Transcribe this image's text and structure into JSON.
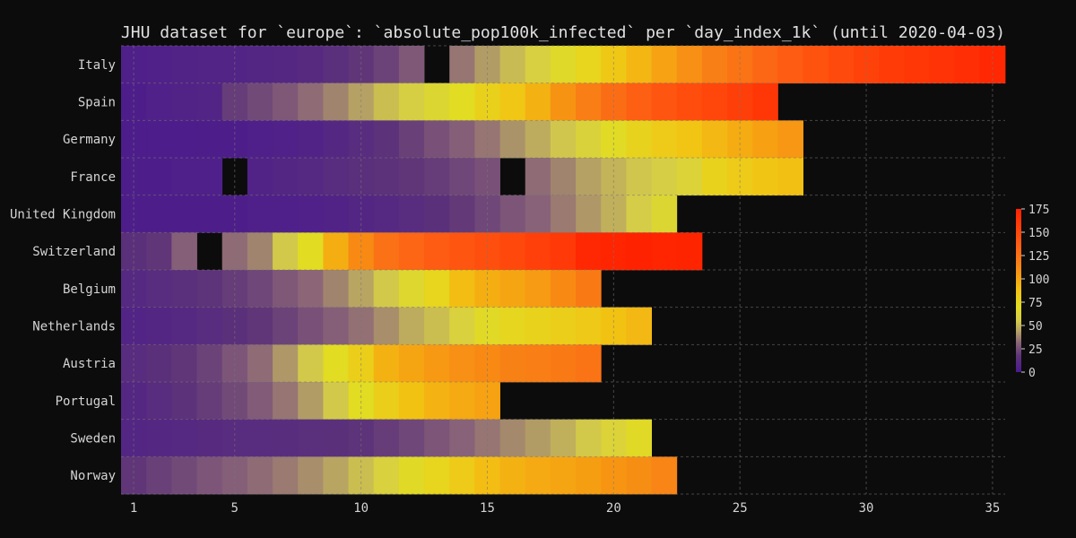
{
  "chart_data": {
    "type": "heatmap",
    "title": "JHU dataset for `europe`: `absolute_pop100k_infected` per `day_index_1k` (until 2020-04-03)",
    "xlabel": "",
    "ylabel": "",
    "x_ticks": [
      1,
      5,
      10,
      15,
      20,
      25,
      30,
      35
    ],
    "xlim": [
      0.5,
      35.5
    ],
    "grid": true,
    "colormap": "plasma-like (purple → orange → red)",
    "colorbar": {
      "label": "",
      "range": [
        0,
        175
      ],
      "ticks": [
        0,
        25,
        50,
        75,
        100,
        125,
        150,
        175
      ],
      "placement": "right"
    },
    "rows": [
      {
        "name": "Italy",
        "values": [
          4,
          5,
          6,
          7,
          7,
          8,
          9,
          11,
          14,
          18,
          22,
          28,
          null,
          35,
          43,
          51,
          59,
          67,
          75,
          84,
          93,
          101,
          109,
          117,
          124,
          131,
          138,
          144,
          149,
          154,
          158,
          161,
          164,
          167,
          171
        ]
      },
      {
        "name": "Spain",
        "values": [
          3,
          5,
          6,
          7,
          20,
          24,
          28,
          33,
          38,
          44,
          52,
          58,
          64,
          70,
          78,
          85,
          95,
          108,
          118,
          128,
          136,
          142,
          147,
          151,
          156,
          161
        ]
      },
      {
        "name": "Germany",
        "values": [
          2,
          2,
          2,
          3,
          3,
          4,
          5,
          6,
          9,
          12,
          16,
          21,
          26,
          30,
          35,
          41,
          47,
          54,
          61,
          69,
          76,
          82,
          87,
          92,
          97,
          102,
          106
        ]
      },
      {
        "name": "France",
        "values": [
          3,
          3,
          4,
          4,
          null,
          6,
          8,
          10,
          12,
          14,
          16,
          18,
          20,
          23,
          26,
          null,
          33,
          38,
          44,
          49,
          54,
          57,
          62,
          77,
          82,
          86,
          89
        ]
      },
      {
        "name": "United Kingdom",
        "values": [
          3,
          3,
          3,
          3,
          3,
          4,
          4,
          5,
          6,
          8,
          10,
          12,
          15,
          19,
          23,
          27,
          31,
          36,
          42,
          48,
          56,
          64
        ]
      },
      {
        "name": "Switzerland",
        "values": [
          15,
          18,
          30,
          null,
          33,
          38,
          55,
          70,
          96,
          112,
          125,
          132,
          138,
          142,
          146,
          150,
          155,
          160,
          171,
          173,
          175,
          173,
          174
        ]
      },
      {
        "name": "Belgium",
        "values": [
          10,
          12,
          14,
          17,
          20,
          23,
          28,
          32,
          38,
          45,
          55,
          65,
          75,
          90,
          96,
          100,
          104,
          112,
          120
        ]
      },
      {
        "name": "Netherlands",
        "values": [
          7,
          8,
          10,
          12,
          15,
          18,
          22,
          26,
          30,
          34,
          40,
          47,
          52,
          60,
          68,
          74,
          77,
          80,
          83,
          88,
          92
        ]
      },
      {
        "name": "Austria",
        "values": [
          12,
          15,
          18,
          22,
          27,
          33,
          42,
          55,
          70,
          80,
          95,
          100,
          105,
          109,
          112,
          116,
          118,
          120,
          124
        ]
      },
      {
        "name": "Portugal",
        "values": [
          9,
          12,
          16,
          20,
          24,
          29,
          35,
          43,
          55,
          70,
          80,
          88,
          94,
          98,
          101
        ]
      },
      {
        "name": "Sweden",
        "values": [
          8,
          9,
          10,
          11,
          12,
          12,
          13,
          14,
          15,
          17,
          20,
          23,
          27,
          31,
          35,
          39,
          43,
          48,
          55,
          62,
          68
        ]
      },
      {
        "name": "Norway",
        "values": [
          18,
          21,
          24,
          27,
          30,
          33,
          36,
          40,
          45,
          52,
          60,
          68,
          75,
          82,
          90,
          95,
          98,
          100,
          103,
          107,
          110,
          114
        ]
      }
    ]
  }
}
